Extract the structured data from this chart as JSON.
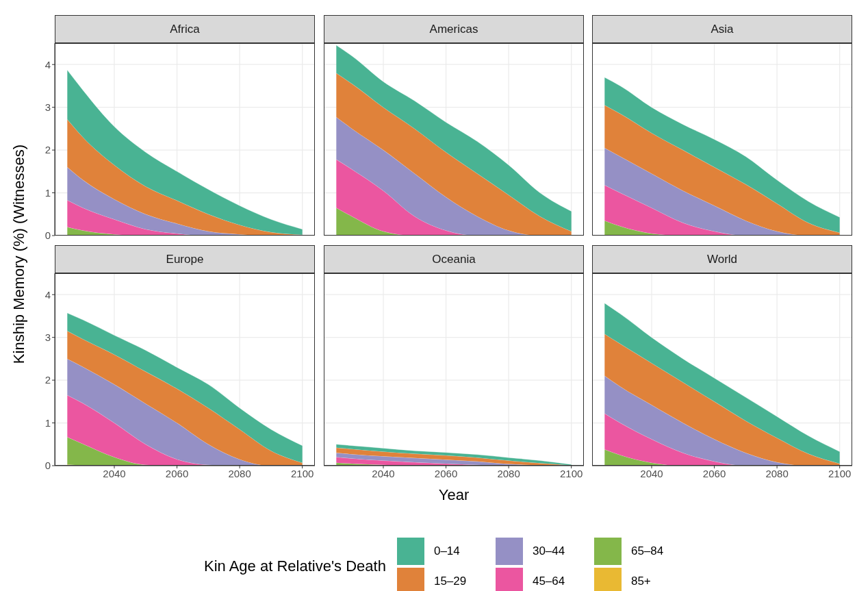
{
  "chart_data": [
    {
      "type": "area",
      "title": "Africa",
      "stacked": true,
      "x": [
        2025,
        2030,
        2040,
        2050,
        2060,
        2070,
        2080,
        2090,
        2100
      ],
      "xlim": [
        2021,
        2104
      ],
      "xticks": [
        2040,
        2060,
        2080,
        2100
      ],
      "ylim": [
        0,
        4.5
      ],
      "yticks": [
        0,
        1,
        2,
        3,
        4
      ],
      "grid": true,
      "tick_labels": "y",
      "ylabel": "Kinship Memory (%) (Witnesses)",
      "series": [
        {
          "color": "#84b74a",
          "values": [
            0.2,
            0.12,
            0.03,
            0,
            0,
            0,
            0,
            0,
            0
          ]
        },
        {
          "color": "#eb56a0",
          "values": [
            0.63,
            0.53,
            0.35,
            0.15,
            0.05,
            0,
            0,
            0,
            0
          ]
        },
        {
          "color": "#9590c5",
          "values": [
            0.77,
            0.65,
            0.47,
            0.35,
            0.23,
            0.1,
            0.03,
            0,
            0
          ]
        },
        {
          "color": "#e0823a",
          "values": [
            1.12,
            1.0,
            0.8,
            0.65,
            0.54,
            0.4,
            0.22,
            0.08,
            0.02
          ]
        },
        {
          "color": "#49b393",
          "values": [
            1.15,
            1.1,
            0.9,
            0.8,
            0.68,
            0.58,
            0.45,
            0.3,
            0.13
          ]
        }
      ]
    },
    {
      "type": "area",
      "title": "Americas",
      "stacked": true,
      "x": [
        2025,
        2030,
        2040,
        2050,
        2060,
        2070,
        2080,
        2090,
        2100
      ],
      "xlim": [
        2021,
        2104
      ],
      "xticks": [
        2040,
        2060,
        2080,
        2100
      ],
      "ylim": [
        0,
        4.5
      ],
      "yticks": [
        0,
        1,
        2,
        3,
        4
      ],
      "grid": true,
      "tick_labels": false,
      "series": [
        {
          "color": "#84b74a",
          "values": [
            0.65,
            0.45,
            0.1,
            0,
            0,
            0,
            0,
            0,
            0
          ]
        },
        {
          "color": "#eb56a0",
          "values": [
            1.13,
            1.1,
            0.95,
            0.45,
            0.12,
            0,
            0,
            0,
            0
          ]
        },
        {
          "color": "#9590c5",
          "values": [
            0.99,
            0.95,
            0.95,
            1.0,
            0.78,
            0.45,
            0.12,
            0,
            0
          ]
        },
        {
          "color": "#e0823a",
          "values": [
            1.03,
            1.05,
            1.0,
            1.05,
            1.05,
            1.0,
            0.83,
            0.45,
            0.1
          ]
        },
        {
          "color": "#49b393",
          "values": [
            0.65,
            0.65,
            0.6,
            0.65,
            0.7,
            0.75,
            0.7,
            0.55,
            0.47
          ]
        }
      ]
    },
    {
      "type": "area",
      "title": "Asia",
      "stacked": true,
      "x": [
        2025,
        2030,
        2040,
        2050,
        2060,
        2070,
        2080,
        2090,
        2100
      ],
      "xlim": [
        2021,
        2104
      ],
      "xticks": [
        2040,
        2060,
        2080,
        2100
      ],
      "ylim": [
        0,
        4.5
      ],
      "yticks": [
        0,
        1,
        2,
        3,
        4
      ],
      "grid": true,
      "tick_labels": false,
      "series": [
        {
          "color": "#84b74a",
          "values": [
            0.35,
            0.22,
            0.05,
            0,
            0,
            0,
            0,
            0,
            0
          ]
        },
        {
          "color": "#eb56a0",
          "values": [
            0.83,
            0.78,
            0.6,
            0.3,
            0.1,
            0,
            0,
            0,
            0
          ]
        },
        {
          "color": "#9590c5",
          "values": [
            0.87,
            0.85,
            0.8,
            0.75,
            0.6,
            0.35,
            0.1,
            0,
            0
          ]
        },
        {
          "color": "#e0823a",
          "values": [
            1.0,
            1.0,
            0.95,
            0.95,
            0.9,
            0.85,
            0.65,
            0.3,
            0.07
          ]
        },
        {
          "color": "#49b393",
          "values": [
            0.65,
            0.65,
            0.6,
            0.6,
            0.65,
            0.65,
            0.55,
            0.5,
            0.36
          ]
        }
      ]
    },
    {
      "type": "area",
      "title": "Europe",
      "stacked": true,
      "x": [
        2025,
        2030,
        2040,
        2050,
        2060,
        2070,
        2080,
        2090,
        2100
      ],
      "xlim": [
        2021,
        2104
      ],
      "xticks": [
        2040,
        2060,
        2080,
        2100
      ],
      "ylim": [
        0,
        4.5
      ],
      "yticks": [
        0,
        1,
        2,
        3,
        4
      ],
      "grid": true,
      "legend": "bottom",
      "legend_title": "Kin Age at Relative's Death",
      "series": [
        {
          "name": "85+",
          "color": "#e9b933",
          "values": [
            0.03,
            0.01,
            0,
            0,
            0,
            0,
            0,
            0,
            0
          ]
        },
        {
          "name": "65–84",
          "color": "#84b74a",
          "values": [
            0.64,
            0.5,
            0.2,
            0.02,
            0,
            0,
            0,
            0,
            0
          ]
        },
        {
          "name": "45–64",
          "color": "#eb56a0",
          "values": [
            0.98,
            0.95,
            0.8,
            0.48,
            0.15,
            0.02,
            0,
            0,
            0
          ]
        },
        {
          "name": "30–44",
          "color": "#9590c5",
          "values": [
            0.85,
            0.85,
            0.9,
            0.95,
            0.85,
            0.48,
            0.15,
            0,
            0
          ]
        },
        {
          "name": "15–29",
          "color": "#e0823a",
          "values": [
            0.65,
            0.65,
            0.7,
            0.75,
            0.8,
            0.85,
            0.7,
            0.35,
            0.07
          ]
        },
        {
          "name": "0–14",
          "color": "#49b393",
          "values": [
            0.42,
            0.45,
            0.45,
            0.5,
            0.5,
            0.55,
            0.5,
            0.5,
            0.4
          ]
        }
      ]
    },
    {
      "type": "area",
      "title": "Oceania",
      "stacked": true,
      "x": [
        2025,
        2030,
        2040,
        2050,
        2060,
        2070,
        2080,
        2090,
        2100
      ],
      "xlim": [
        2021,
        2104
      ],
      "xticks": [
        2040,
        2060,
        2080,
        2100
      ],
      "ylim": [
        0,
        4.5
      ],
      "yticks": [
        0,
        1,
        2,
        3,
        4
      ],
      "grid": true,
      "tick_labels": "x",
      "xlabel": "Year",
      "series": [
        {
          "color": "#84b74a",
          "values": [
            0.07,
            0.05,
            0.02,
            0,
            0,
            0,
            0,
            0,
            0
          ]
        },
        {
          "color": "#eb56a0",
          "values": [
            0.13,
            0.12,
            0.1,
            0.08,
            0.05,
            0.02,
            0,
            0,
            0
          ]
        },
        {
          "color": "#9590c5",
          "values": [
            0.1,
            0.1,
            0.1,
            0.1,
            0.09,
            0.08,
            0.04,
            0.01,
            0
          ]
        },
        {
          "color": "#e0823a",
          "values": [
            0.12,
            0.12,
            0.11,
            0.1,
            0.1,
            0.09,
            0.08,
            0.05,
            0.01
          ]
        },
        {
          "color": "#49b393",
          "values": [
            0.08,
            0.08,
            0.08,
            0.07,
            0.07,
            0.07,
            0.07,
            0.06,
            0.02
          ]
        }
      ]
    },
    {
      "type": "area",
      "title": "World",
      "stacked": true,
      "x": [
        2025,
        2030,
        2040,
        2050,
        2060,
        2070,
        2080,
        2090,
        2100
      ],
      "xlim": [
        2021,
        2104
      ],
      "xticks": [
        2040,
        2060,
        2080,
        2100
      ],
      "ylim": [
        0,
        4.5
      ],
      "yticks": [
        0,
        1,
        2,
        3,
        4
      ],
      "grid": true,
      "tick_labels": "x",
      "series": [
        {
          "color": "#84b74a",
          "values": [
            0.38,
            0.25,
            0.07,
            0,
            0,
            0,
            0,
            0,
            0
          ]
        },
        {
          "color": "#eb56a0",
          "values": [
            0.84,
            0.75,
            0.55,
            0.3,
            0.1,
            0,
            0,
            0,
            0
          ]
        },
        {
          "color": "#9590c5",
          "values": [
            0.88,
            0.85,
            0.8,
            0.7,
            0.52,
            0.3,
            0.08,
            0,
            0
          ]
        },
        {
          "color": "#e0823a",
          "values": [
            0.98,
            1.0,
            0.98,
            0.95,
            0.88,
            0.75,
            0.57,
            0.28,
            0.05
          ]
        },
        {
          "color": "#49b393",
          "values": [
            0.72,
            0.7,
            0.6,
            0.55,
            0.55,
            0.55,
            0.5,
            0.42,
            0.28
          ]
        }
      ]
    }
  ]
}
